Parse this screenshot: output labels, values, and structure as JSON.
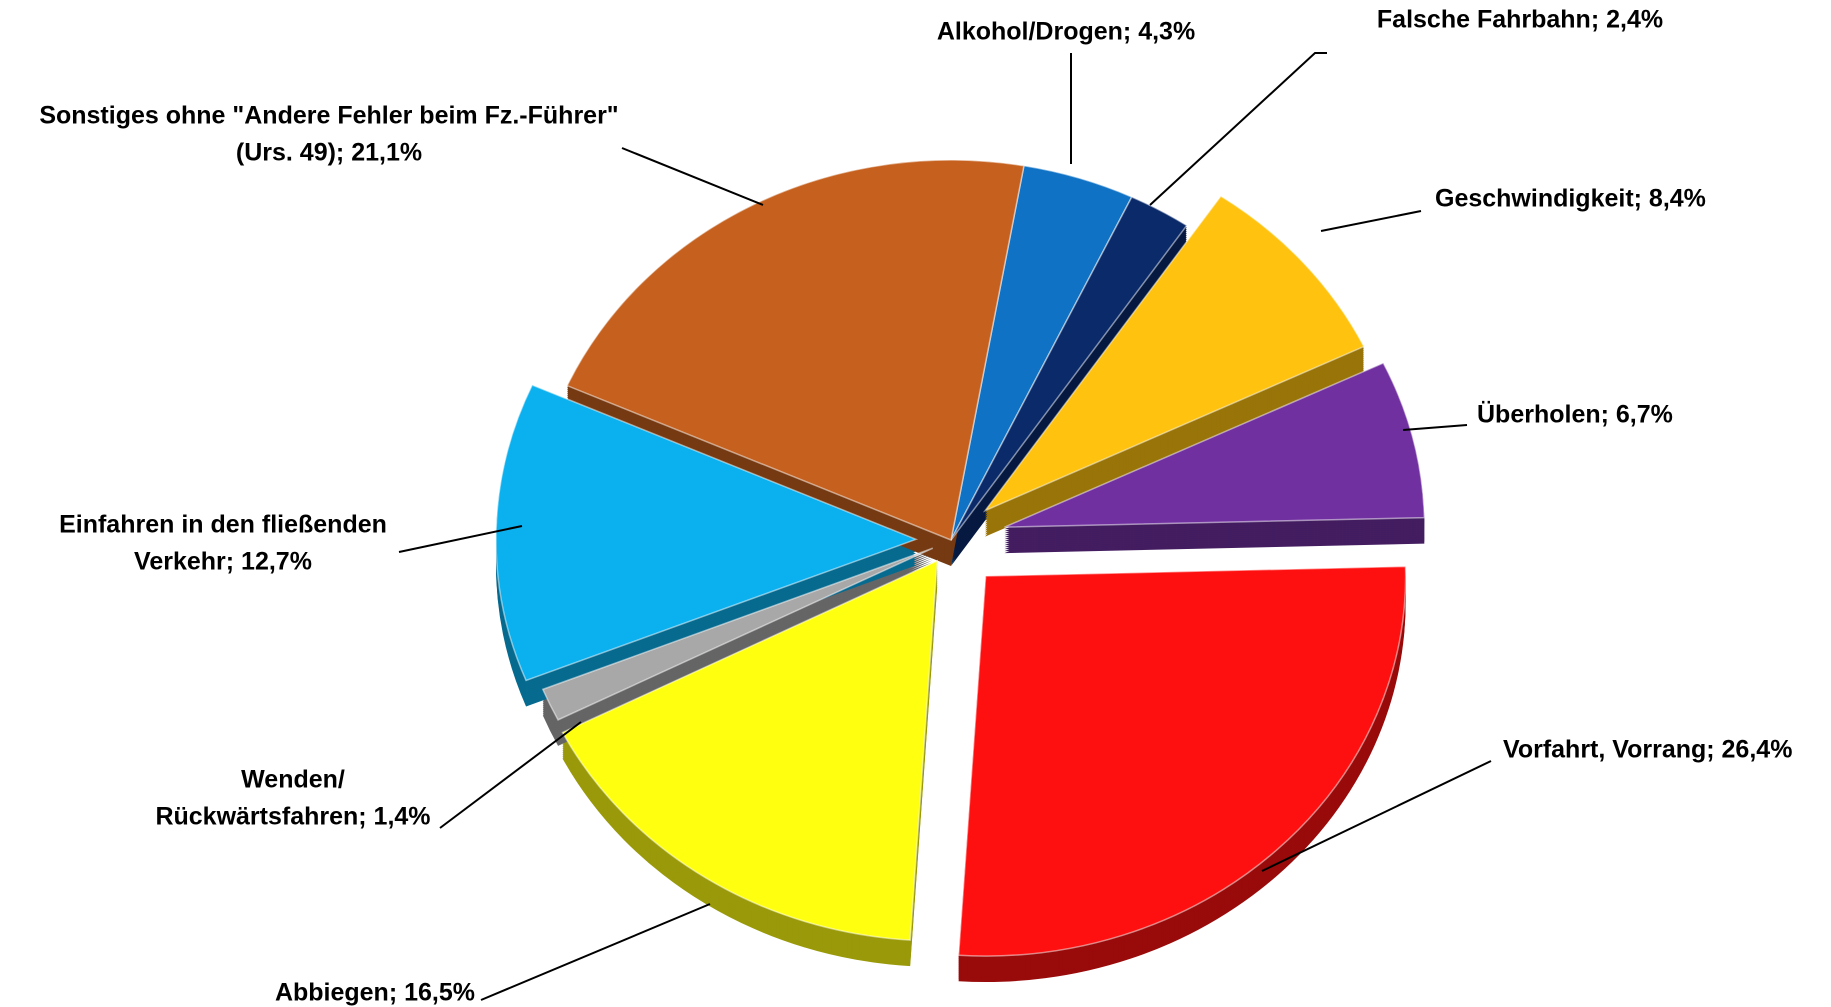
{
  "chart_data": {
    "type": "pie",
    "values": [
      4.3,
      2.4,
      8.4,
      6.7,
      26.4,
      16.5,
      1.4,
      12.7,
      21.1
    ],
    "value_labels": [
      [
        "Alkohol/Drogen; 4,3%"
      ],
      [
        "Falsche Fahrbahn;  2,4%"
      ],
      [
        "Geschwindigkeit; 8,4%"
      ],
      [
        "Überholen; 6,7%"
      ],
      [
        "Vorfahrt, Vorrang; 26,4%"
      ],
      [
        "Abbiegen; 16,5%"
      ],
      [
        "Wenden/",
        "Rückwärtsfahren; 1,4%"
      ],
      [
        "Einfahren in den fließenden",
        "Verkehr; 12,7%"
      ],
      [
        "Sonstiges ohne \"Andere Fehler beim Fz.-Führer\"",
        "(Urs. 49); 21,1%"
      ]
    ],
    "colors": [
      "#0f72c4",
      "#0a2a6a",
      "#ffc20e",
      "#7030a0",
      "#ff1010",
      "#ffff10",
      "#a8a8a8",
      "#0bb0ee",
      "#c5601e"
    ]
  }
}
